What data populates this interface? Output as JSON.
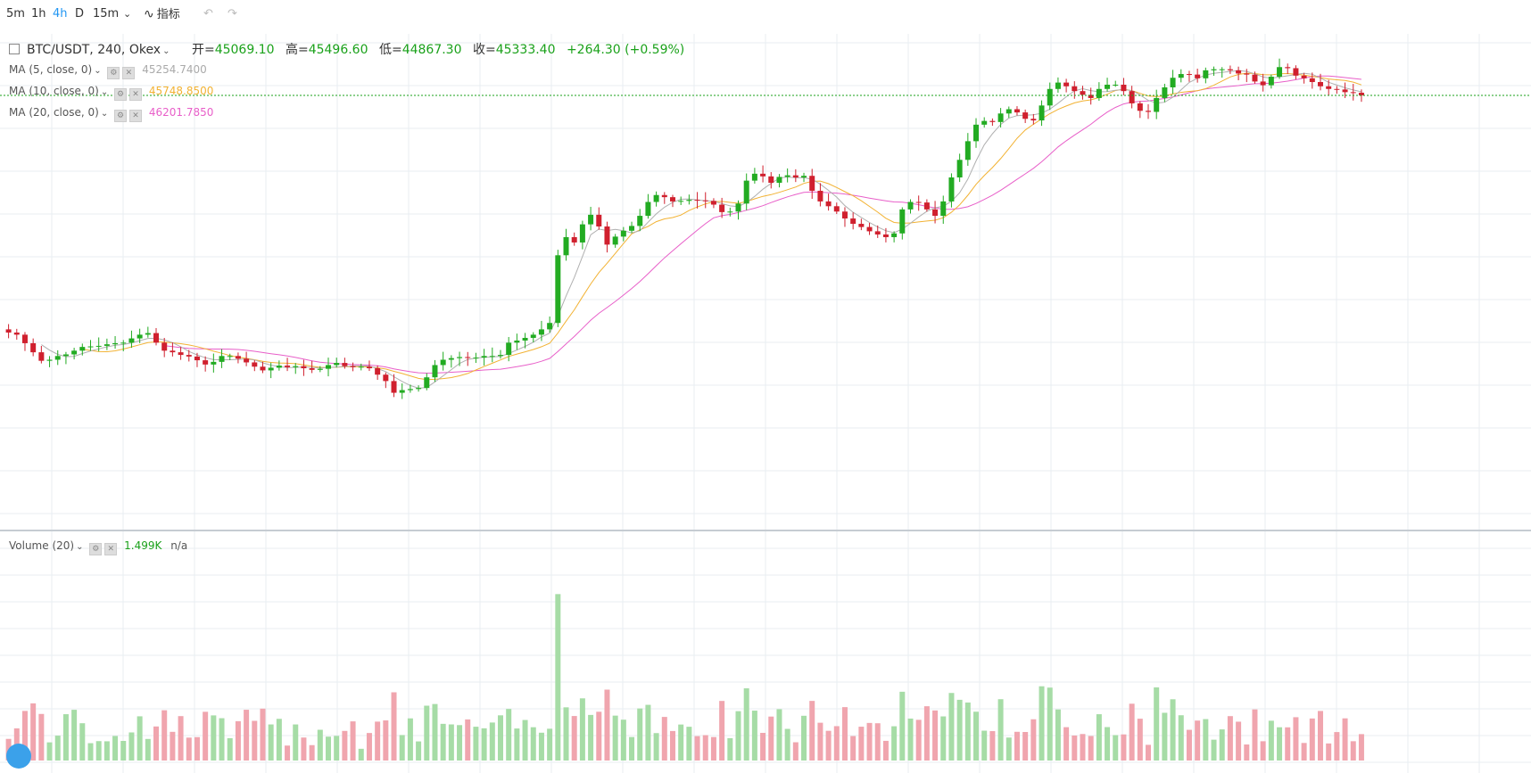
{
  "toolbar": {
    "intervals": [
      "5m",
      "1h",
      "4h",
      "D",
      "15m"
    ],
    "active": "4h",
    "indicators_label": "指标"
  },
  "colors": {
    "up": "#22ab22",
    "down": "#d0202e",
    "vol_up": "#a6dca6",
    "vol_down": "#f0a5ae",
    "ma5": "#b0b0b0",
    "ma10": "#f2b233",
    "ma20": "#e85fc9",
    "grid": "#e8eef2",
    "last_price_line": "#1aa11a"
  },
  "legend": {
    "symbol": "BTC/USDT, 240, Okex",
    "open_label": "开=",
    "open": "45069.10",
    "high_label": "高=",
    "high": "45496.60",
    "low_label": "低=",
    "low": "44867.30",
    "close_label": "收=",
    "close": "45333.40",
    "change": "+264.30 (+0.59%)",
    "ma5_label": "MA (5, close, 0)",
    "ma5_value": "45254.7400",
    "ma10_label": "MA (10, close, 0)",
    "ma10_value": "45748.8500",
    "ma20_label": "MA (20, close, 0)",
    "ma20_value": "46201.7850",
    "volume_label": "Volume (20)",
    "volume_value": "1.499K",
    "volume_ma": "n/a"
  },
  "chart_data": {
    "type": "candlestick",
    "price_range": [
      42800,
      52000
    ],
    "volume_max": 2400,
    "closes": [
      46430,
      46390,
      46230,
      46060,
      45900,
      45920,
      45990,
      46020,
      46090,
      46160,
      46170,
      46180,
      46210,
      46230,
      46240,
      46320,
      46390,
      46420,
      46240,
      46090,
      46060,
      46010,
      45980,
      45910,
      45830,
      45880,
      45990,
      45990,
      45940,
      45870,
      45790,
      45720,
      45770,
      45810,
      45780,
      45800,
      45760,
      45730,
      45750,
      45820,
      45860,
      45800,
      45780,
      45790,
      45760,
      45640,
      45520,
      45300,
      45350,
      45370,
      45390,
      45590,
      45820,
      45920,
      45950,
      45970,
      45960,
      45960,
      45990,
      45990,
      46010,
      46240,
      46280,
      46330,
      46390,
      46490,
      46610,
      47880,
      48220,
      48120,
      48460,
      48640,
      48420,
      48080,
      48230,
      48340,
      48430,
      48620,
      48880,
      49010,
      48970,
      48890,
      48900,
      48920,
      48910,
      48900,
      48830,
      48690,
      48700,
      48850,
      49280,
      49410,
      49360,
      49240,
      49350,
      49380,
      49340,
      49370,
      49090,
      48890,
      48800,
      48700,
      48570,
      48470,
      48410,
      48330,
      48270,
      48220,
      48290,
      48740,
      48880,
      48870,
      48740,
      48620,
      48890,
      49340,
      49670,
      50020,
      50330,
      50400,
      50380,
      50540,
      50620,
      50560,
      50440,
      50410,
      50690,
      51000,
      51120,
      51050,
      50960,
      50890,
      50830,
      51000,
      51080,
      51080,
      50960,
      50730,
      50590,
      50570,
      50830,
      51030,
      51210,
      51280,
      51270,
      51200,
      51350,
      51370,
      51370,
      51350,
      51290,
      51270,
      51140,
      51070,
      51230,
      51410,
      51390,
      51250,
      51200,
      51130,
      51050,
      51000,
      50990,
      50940,
      50930,
      50880
    ]
  },
  "price_line_value": 50880
}
